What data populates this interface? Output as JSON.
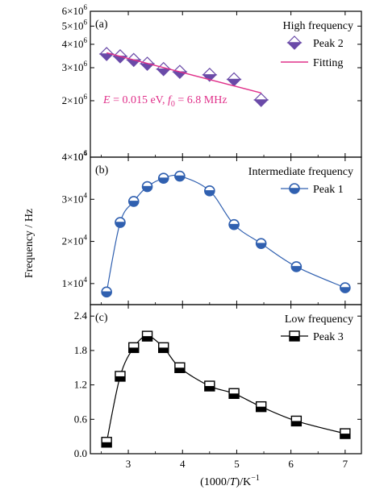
{
  "x_axis": {
    "label_prefix": "(1000/",
    "label_var": "T",
    "label_suffix": ")/K",
    "label_sup": "−1",
    "ticks": [
      3,
      4,
      5,
      6,
      7
    ],
    "xlim": [
      2.3,
      7.3
    ]
  },
  "y_axis_label": "Frequency / Hz",
  "colors": {
    "purple": "#6a4aa8",
    "pink": "#e0308a",
    "blue": "#3060b0",
    "black": "#000000"
  },
  "chart_data": [
    {
      "type": "scatter",
      "panel": "(a)",
      "title": "High frequency",
      "y_scale": "log",
      "ylim": [
        1000000,
        6000000
      ],
      "y_ticks": [
        {
          "value": 1000000,
          "mant": "10",
          "exp": "6"
        },
        {
          "value": 2000000,
          "mant": "2×10",
          "exp": "6"
        },
        {
          "value": 3000000,
          "mant": "3×10",
          "exp": "6"
        },
        {
          "value": 4000000,
          "mant": "4×10",
          "exp": "6"
        },
        {
          "value": 5000000,
          "mant": "5×10",
          "exp": "6"
        },
        {
          "value": 6000000,
          "mant": "6×10",
          "exp": "6"
        }
      ],
      "series": [
        {
          "name": "Peak 2",
          "marker": "diamond",
          "color": "#6a4aa8",
          "x": [
            2.6,
            2.85,
            3.1,
            3.35,
            3.65,
            3.95,
            4.5,
            4.95,
            5.45
          ],
          "y": [
            3550000,
            3450000,
            3300000,
            3150000,
            2950000,
            2850000,
            2750000,
            2600000,
            2020000
          ]
        },
        {
          "name": "Fitting",
          "marker": "line",
          "color": "#e0308a",
          "x": [
            2.6,
            5.45
          ],
          "y": [
            3600000,
            2200000
          ]
        }
      ],
      "annotation": {
        "E_var": "E",
        "E_text": " = 0.015 eV, ",
        "f_var": "f",
        "f_sub": "0",
        "f_text": " = 6.8 MHz"
      },
      "legend_position": "top-right"
    },
    {
      "type": "line",
      "panel": "(b)",
      "title": "Intermediate frequency",
      "y_scale": "linear",
      "ylim": [
        5000,
        40000
      ],
      "y_ticks": [
        {
          "value": 10000,
          "mant": "1×10",
          "exp": "4"
        },
        {
          "value": 20000,
          "mant": "2×10",
          "exp": "4"
        },
        {
          "value": 30000,
          "mant": "3×10",
          "exp": "4"
        },
        {
          "value": 40000,
          "mant": "4×10",
          "exp": "4"
        }
      ],
      "series": [
        {
          "name": "Peak 1",
          "marker": "half-circle",
          "color": "#3060b0",
          "x": [
            2.6,
            2.85,
            3.1,
            3.35,
            3.65,
            3.95,
            4.5,
            4.95,
            5.45,
            6.1,
            7.0
          ],
          "y": [
            8000,
            24500,
            29500,
            33000,
            35000,
            35500,
            32000,
            24000,
            19500,
            14000,
            9000
          ]
        }
      ],
      "legend_position": "top-right"
    },
    {
      "type": "line",
      "panel": "(c)",
      "title": "Low frequency",
      "y_scale": "linear",
      "ylim": [
        0,
        2.6
      ],
      "y_ticks": [
        {
          "value": 0,
          "label": "0.0"
        },
        {
          "value": 0.6,
          "label": "0.6"
        },
        {
          "value": 1.2,
          "label": "1.2"
        },
        {
          "value": 1.8,
          "label": "1.8"
        },
        {
          "value": 2.4,
          "label": "2.4"
        }
      ],
      "series": [
        {
          "name": "Peak 3",
          "marker": "half-square",
          "color": "#000000",
          "x": [
            2.6,
            2.85,
            3.1,
            3.35,
            3.65,
            3.95,
            4.5,
            4.95,
            5.45,
            6.1,
            7.0
          ],
          "y": [
            0.2,
            1.35,
            1.85,
            2.05,
            1.85,
            1.5,
            1.18,
            1.05,
            0.82,
            0.57,
            0.35
          ]
        }
      ],
      "legend_position": "top-right"
    }
  ]
}
